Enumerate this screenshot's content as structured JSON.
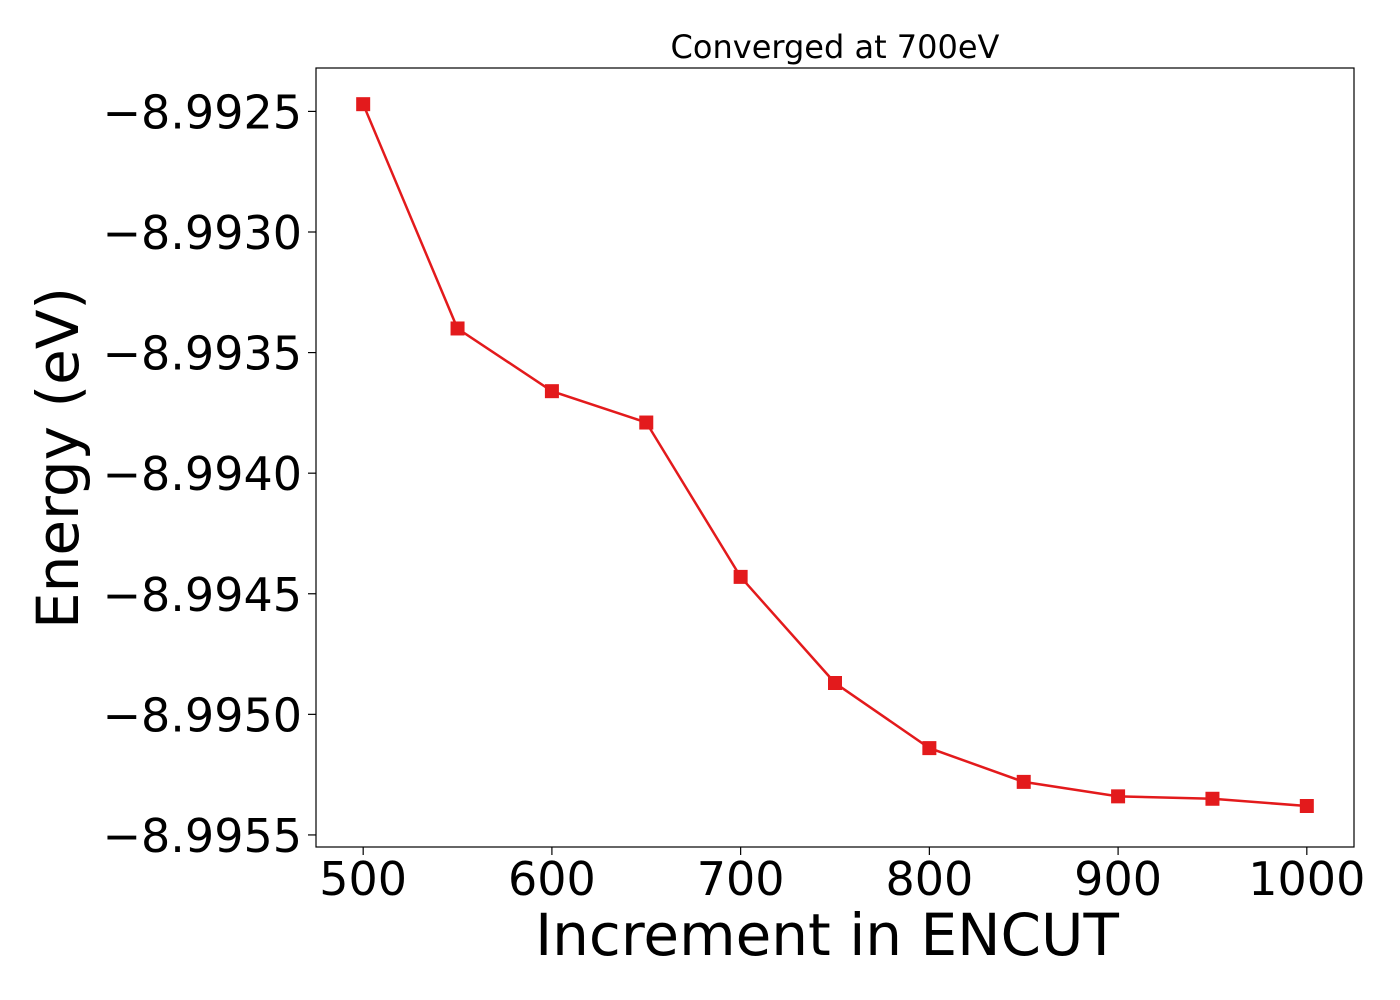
{
  "chart_data": {
    "type": "line",
    "title": "Converged at 700eV",
    "xlabel": "Increment in ENCUT",
    "ylabel": "Energy (eV)",
    "xlim": [
      475,
      1025
    ],
    "ylim": [
      -8.99555,
      -8.99232
    ],
    "x_ticks": [
      500,
      600,
      700,
      800,
      900,
      1000
    ],
    "x_tick_labels": [
      "500",
      "600",
      "700",
      "800",
      "900",
      "1000"
    ],
    "y_ticks": [
      -8.9925,
      -8.993,
      -8.9935,
      -8.994,
      -8.9945,
      -8.995,
      -8.9955
    ],
    "y_tick_labels": [
      "−8.9925",
      "−8.9930",
      "−8.9935",
      "−8.9940",
      "−8.9945",
      "−8.9950",
      "−8.9955"
    ],
    "grid": false,
    "legend": "none",
    "series": [
      {
        "color": "#e31a1c",
        "marker": "square",
        "x": [
          500,
          550,
          600,
          650,
          700,
          750,
          800,
          850,
          900,
          950,
          1000
        ],
        "y": [
          -8.99247,
          -8.9934,
          -8.99366,
          -8.99379,
          -8.99443,
          -8.99487,
          -8.99514,
          -8.99528,
          -8.99534,
          -8.99535,
          -8.99538
        ]
      }
    ]
  }
}
